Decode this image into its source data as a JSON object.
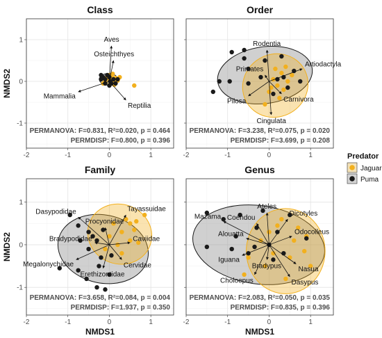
{
  "legend": {
    "title": "Predator",
    "items": [
      {
        "label": "Jaguar",
        "color": "#F2B01E"
      },
      {
        "label": "Puma",
        "color": "#1a1a1a"
      }
    ]
  },
  "axes": {
    "xlabel": "NMDS1",
    "ylabel": "NMDS2"
  },
  "chart_data": [
    {
      "type": "scatter",
      "title": "Class",
      "xlim": [
        -2,
        1.55
      ],
      "ylim": [
        -1.6,
        1.5
      ],
      "xticks": [
        -2,
        -1,
        0,
        1
      ],
      "yticks": [
        -1,
        0,
        1
      ],
      "show_xlabel": false,
      "show_ylabel": true,
      "show_xticklabels": true,
      "show_yticklabels": true,
      "ellipses": [
        {
          "group": "Puma",
          "cx": -0.02,
          "cy": 0.05,
          "rx": 0.22,
          "ry": 0.14,
          "angle": 0
        },
        {
          "group": "Jaguar",
          "cx": 0.02,
          "cy": 0.03,
          "rx": 0.16,
          "ry": 0.1,
          "angle": 0
        }
      ],
      "points": {
        "Jaguar": [
          [
            0.0,
            0.05
          ],
          [
            0.1,
            0.0
          ],
          [
            0.05,
            -0.05
          ],
          [
            -0.05,
            0.1
          ],
          [
            0.15,
            0.08
          ],
          [
            0.2,
            0.02
          ],
          [
            0.12,
            -0.08
          ],
          [
            -0.1,
            0.0
          ],
          [
            0.0,
            0.15
          ],
          [
            0.25,
            0.1
          ],
          [
            0.6,
            -0.1
          ],
          [
            0.05,
            0.12
          ],
          [
            -0.15,
            -0.05
          ],
          [
            0.08,
            0.18
          ]
        ],
        "Puma": [
          [
            -0.1,
            0.05
          ],
          [
            0.0,
            0.1
          ],
          [
            -0.2,
            0.05
          ],
          [
            0.05,
            -0.05
          ],
          [
            -0.05,
            0.15
          ],
          [
            -0.15,
            0.1
          ],
          [
            0.1,
            0.05
          ],
          [
            0.15,
            -0.05
          ],
          [
            -0.1,
            -0.05
          ],
          [
            0.02,
            0.0
          ],
          [
            -0.2,
            0.15
          ],
          [
            0.0,
            -0.1
          ],
          [
            0.2,
            0.05
          ]
        ]
      },
      "vectors": [
        {
          "label": "Aves",
          "x": 0.05,
          "y": 0.85
        },
        {
          "label": "Osteichthyes",
          "x": 0.1,
          "y": 0.5
        },
        {
          "label": "Mammalia",
          "x": -0.75,
          "y": -0.25
        },
        {
          "label": "Reptilia",
          "x": 0.4,
          "y": -0.45
        }
      ],
      "stats": [
        "PERMANOVA: F=0.831, R²=0.020, p = 0.464",
        "PERMDISP: F=0.800, p = 0.396"
      ]
    },
    {
      "type": "scatter",
      "title": "Order",
      "xlim": [
        -2,
        1.55
      ],
      "ylim": [
        -1.6,
        1.5
      ],
      "xticks": [
        -2,
        -1,
        0,
        1
      ],
      "yticks": [
        -1,
        0,
        1
      ],
      "show_xlabel": false,
      "show_ylabel": false,
      "show_xticklabels": true,
      "show_yticklabels": false,
      "ellipses": [
        {
          "group": "Puma",
          "cx": -0.1,
          "cy": 0.15,
          "rx": 1.15,
          "ry": 0.68,
          "angle": -8
        },
        {
          "group": "Jaguar",
          "cx": 0.15,
          "cy": -0.1,
          "rx": 0.8,
          "ry": 0.75,
          "angle": -30
        }
      ],
      "points": {
        "Jaguar": [
          [
            0.1,
            0.05
          ],
          [
            0.2,
            -0.1
          ],
          [
            0.3,
            0.2
          ],
          [
            0.0,
            -0.25
          ],
          [
            0.35,
            -0.2
          ],
          [
            0.45,
            0.0
          ],
          [
            -0.1,
            -0.55
          ],
          [
            0.15,
            0.3
          ],
          [
            0.55,
            0.15
          ],
          [
            0.25,
            -0.4
          ],
          [
            0.05,
            -0.15
          ],
          [
            0.4,
            0.35
          ]
        ],
        "Puma": [
          [
            -0.9,
            0.7
          ],
          [
            -0.6,
            0.55
          ],
          [
            -0.5,
            0.3
          ],
          [
            -0.1,
            0.5
          ],
          [
            0.3,
            0.6
          ],
          [
            0.6,
            0.25
          ],
          [
            0.45,
            -0.15
          ],
          [
            -0.95,
            0.0
          ],
          [
            -0.5,
            -0.05
          ],
          [
            -0.2,
            0.1
          ],
          [
            -0.6,
            0.75
          ],
          [
            0.2,
            0.05
          ],
          [
            0.75,
            0.0
          ],
          [
            -1.35,
            -0.25
          ],
          [
            -1.2,
            0.0
          ],
          [
            0.1,
            -0.3
          ],
          [
            0.35,
            0.1
          ]
        ]
      },
      "vectors": [
        {
          "label": "Rodentia",
          "x": -0.05,
          "y": 0.75
        },
        {
          "label": "Primates",
          "x": -0.1,
          "y": 0.15
        },
        {
          "label": "Artiodactyla",
          "x": 0.8,
          "y": 0.3
        },
        {
          "label": "Pilosa",
          "x": -0.5,
          "y": -0.35
        },
        {
          "label": "Carnivora",
          "x": 0.3,
          "y": -0.3
        },
        {
          "label": "Cingulata",
          "x": 0.05,
          "y": -0.8
        }
      ],
      "stats": [
        "PERMANOVA: F=3.238, R²=0.075, p = 0.020",
        "PERMDISP: F=3.699, p = 0.208"
      ]
    },
    {
      "type": "scatter",
      "title": "Family",
      "xlim": [
        -2,
        1.55
      ],
      "ylim": [
        -1.65,
        1.55
      ],
      "xticks": [
        -2,
        -1,
        0,
        1
      ],
      "yticks": [
        -1,
        0,
        1
      ],
      "show_xlabel": true,
      "show_ylabel": true,
      "show_xticklabels": true,
      "show_yticklabels": true,
      "ellipses": [
        {
          "group": "Puma",
          "cx": -0.15,
          "cy": -0.1,
          "rx": 1.1,
          "ry": 0.8,
          "angle": 12
        },
        {
          "group": "Jaguar",
          "cx": 0.25,
          "cy": 0.25,
          "rx": 0.78,
          "ry": 0.7,
          "angle": 20
        }
      ],
      "points": {
        "Jaguar": [
          [
            0.1,
            0.5
          ],
          [
            0.3,
            0.3
          ],
          [
            0.5,
            0.1
          ],
          [
            0.0,
            0.2
          ],
          [
            0.4,
            0.6
          ],
          [
            0.6,
            0.35
          ],
          [
            0.7,
            0.05
          ],
          [
            0.2,
            0.0
          ],
          [
            -0.1,
            -0.1
          ],
          [
            0.5,
            0.5
          ],
          [
            0.85,
            0.7
          ],
          [
            0.3,
            -0.2
          ],
          [
            0.65,
            0.55
          ]
        ],
        "Puma": [
          [
            -0.95,
            0.7
          ],
          [
            -0.75,
            0.45
          ],
          [
            -0.5,
            0.3
          ],
          [
            -0.3,
            0.1
          ],
          [
            -0.2,
            -0.3
          ],
          [
            -0.5,
            -0.1
          ],
          [
            -1.2,
            -0.55
          ],
          [
            -0.75,
            -0.6
          ],
          [
            -0.55,
            -0.8
          ],
          [
            -0.3,
            -1.0
          ],
          [
            -0.1,
            -1.05
          ],
          [
            0.0,
            -0.7
          ],
          [
            -0.25,
            -0.5
          ],
          [
            -0.4,
            0.2
          ],
          [
            0.05,
            -0.25
          ],
          [
            -0.15,
            0.35
          ],
          [
            -0.7,
            0.1
          ]
        ]
      },
      "vectors": [
        {
          "label": "Dasypodidae",
          "x": -0.75,
          "y": 0.65
        },
        {
          "label": "Tayassuidae",
          "x": 0.4,
          "y": 0.7
        },
        {
          "label": "Procyonidae",
          "x": -0.1,
          "y": 0.4
        },
        {
          "label": "Caviidae",
          "x": 0.5,
          "y": 0.05
        },
        {
          "label": "Bradypodidae",
          "x": -0.35,
          "y": 0.05
        },
        {
          "label": "Cervidae",
          "x": 0.3,
          "y": -0.35
        },
        {
          "label": "Megalonychidae",
          "x": -0.8,
          "y": -0.35
        },
        {
          "label": "Erethizontidae",
          "x": -0.15,
          "y": -0.55
        }
      ],
      "stats": [
        "PERMANOVA: F=3.658, R²=0.084, p = 0.004",
        "PERMDISP: F=1.937, p = 0.350"
      ]
    },
    {
      "type": "scatter",
      "title": "Genus",
      "xlim": [
        -2,
        1.55
      ],
      "ylim": [
        -1.65,
        1.55
      ],
      "xticks": [
        -2,
        -1,
        0,
        1
      ],
      "yticks": [
        -1,
        0,
        1
      ],
      "show_xlabel": true,
      "show_ylabel": false,
      "show_xticklabels": true,
      "show_yticklabels": false,
      "ellipses": [
        {
          "group": "Puma",
          "cx": -0.25,
          "cy": 0.0,
          "rx": 1.6,
          "ry": 0.92,
          "angle": 8
        },
        {
          "group": "Jaguar",
          "cx": 0.4,
          "cy": -0.15,
          "rx": 0.95,
          "ry": 1.0,
          "angle": 0
        }
      ],
      "points": {
        "Jaguar": [
          [
            0.3,
            0.6
          ],
          [
            0.7,
            0.4
          ],
          [
            0.9,
            0.2
          ],
          [
            -0.2,
            0.1
          ],
          [
            0.1,
            -0.2
          ],
          [
            0.5,
            -0.3
          ],
          [
            0.85,
            -0.15
          ],
          [
            -0.6,
            -0.7
          ],
          [
            -0.5,
            -0.3
          ],
          [
            0.0,
            0.3
          ],
          [
            0.6,
            0.1
          ],
          [
            0.4,
            -0.8
          ],
          [
            -0.1,
            -0.5
          ],
          [
            1.0,
            -0.5
          ],
          [
            0.2,
            0.45
          ]
        ],
        "Puma": [
          [
            -1.5,
            0.75
          ],
          [
            -1.1,
            0.6
          ],
          [
            -0.8,
            0.2
          ],
          [
            -0.3,
            0.4
          ],
          [
            -0.15,
            0.8
          ],
          [
            0.2,
            0.3
          ],
          [
            0.5,
            0.7
          ],
          [
            -0.5,
            -0.2
          ],
          [
            -0.9,
            -0.1
          ],
          [
            -1.5,
            -0.05
          ],
          [
            0.1,
            -0.35
          ],
          [
            -0.35,
            -0.05
          ],
          [
            0.35,
            -0.2
          ],
          [
            -0.7,
            0.7
          ],
          [
            0.9,
            0.15
          ],
          [
            0.0,
            0.0
          ]
        ]
      },
      "vectors": [
        {
          "label": "Mazama",
          "x": -1.1,
          "y": 0.55
        },
        {
          "label": "Ateles",
          "x": -0.05,
          "y": 0.75
        },
        {
          "label": "Dicotyles",
          "x": 0.45,
          "y": 0.6
        },
        {
          "label": "Coendou",
          "x": -0.3,
          "y": 0.5
        },
        {
          "label": "Alouatta",
          "x": -0.55,
          "y": 0.15
        },
        {
          "label": "Odocoileus",
          "x": 0.55,
          "y": 0.2
        },
        {
          "label": "Iguana",
          "x": -0.65,
          "y": -0.25
        },
        {
          "label": "Bradypus",
          "x": -0.05,
          "y": -0.35
        },
        {
          "label": "Choloepus",
          "x": -0.35,
          "y": -0.7
        },
        {
          "label": "Nasua",
          "x": 0.65,
          "y": -0.45
        },
        {
          "label": "Dasypus",
          "x": 0.5,
          "y": -0.75
        }
      ],
      "stats": [
        "PERMANOVA: F=2.083, R²=0.050, p = 0.035",
        "PERMDISP: F=0.835, p = 0.396"
      ]
    }
  ]
}
